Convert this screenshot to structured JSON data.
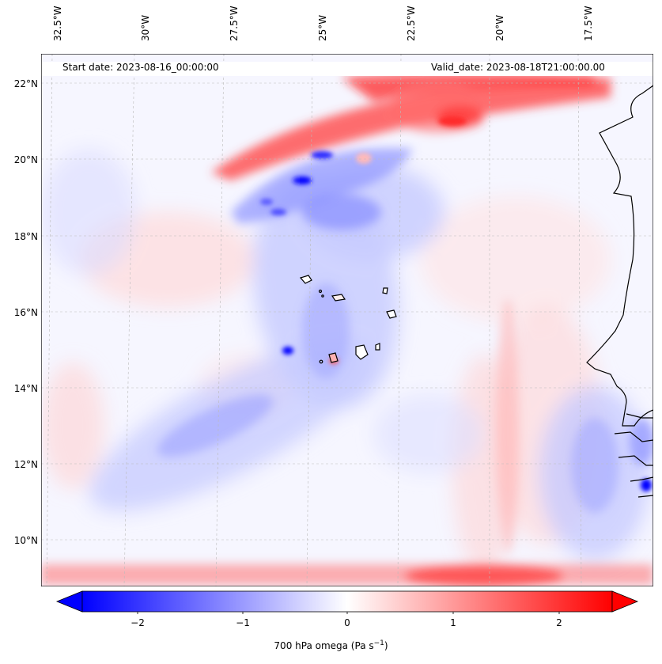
{
  "map": {
    "header_left": "Start date: 2023-08-16_00:00:00",
    "header_right": "Valid_date: 2023-08-18T21:00:00.00",
    "lon_labels": [
      "32.5°W",
      "30°W",
      "27.5°W",
      "25°W",
      "22.5°W",
      "20°W",
      "17.5°W"
    ],
    "lat_labels": [
      "22°N",
      "20°N",
      "18°N",
      "16°N",
      "14°N",
      "12°N",
      "10°N"
    ],
    "colorbar": {
      "ticks": [
        "−2",
        "−1",
        "0",
        "1",
        "2"
      ],
      "label_main": "700 hPa omega (Pa s",
      "label_sup": "−1",
      "label_end": ")",
      "min_color": "#0000ff",
      "mid_color": "#ffffff",
      "max_color": "#ff0000"
    },
    "colors": {
      "coast": "#000000",
      "grid": "#bbbbbb"
    }
  }
}
